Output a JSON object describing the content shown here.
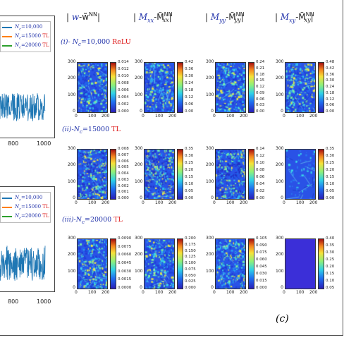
{
  "figure": {
    "panel_label": "(c)",
    "columns": [
      {
        "prefix": "| ",
        "sym": "w",
        "sep": "-",
        "approx": "w̃",
        "sup": "NN",
        "suffix": "|",
        "sym_color": "#2233aa"
      },
      {
        "prefix": "| ",
        "sym": "M",
        "sub": "xx",
        "sep": "-",
        "approx": "M̃",
        "sup": "NN",
        "approx_sub": "xx",
        "suffix": "|",
        "sym_color": "#2233aa"
      },
      {
        "prefix": "| ",
        "sym": "M",
        "sub": "yy",
        "sep": "-",
        "approx": "M̃",
        "sup": "NN",
        "approx_sub": "yy",
        "suffix": "|",
        "sym_color": "#2233aa"
      },
      {
        "prefix": "| ",
        "sym": "M",
        "sub": "xy",
        "sep": "-",
        "approx": "M̃",
        "sup": "NN",
        "approx_sub": "xy",
        "suffix": "|",
        "sym_color": "#2233aa"
      }
    ],
    "rows": [
      {
        "label_a": "(i)- ",
        "label_b": "N",
        "label_sub": "c",
        "label_c": "=10,000 ",
        "label_tag": "ReLU",
        "tag_color": "#d11"
      },
      {
        "label_a": "(ii)",
        "label_b": "-N",
        "label_sub": "c",
        "label_c": "=15000 ",
        "label_tag": "TL",
        "tag_color": "#d11"
      },
      {
        "label_a": "(iii)",
        "label_b": "-N",
        "label_sub": "c",
        "label_c": "=20000 ",
        "label_tag": "TL",
        "tag_color": "#d11"
      }
    ],
    "heatmap_axis": {
      "y_ticks": [
        "300",
        "200",
        "100",
        "0"
      ],
      "x_ticks": [
        "0",
        "100",
        "200"
      ]
    },
    "colorbars": [
      [
        [
          "0.014",
          "0.012",
          "0.010",
          "0.008",
          "0.006",
          "0.004",
          "0.002",
          "0.000"
        ],
        [
          "0.42",
          "0.36",
          "0.30",
          "0.24",
          "0.18",
          "0.12",
          "0.06",
          "0.00"
        ],
        [
          "0.24",
          "0.21",
          "0.18",
          "0.15",
          "0.12",
          "0.09",
          "0.06",
          "0.03",
          "0.00"
        ],
        [
          "0.48",
          "0.42",
          "0.36",
          "0.30",
          "0.24",
          "0.18",
          "0.12",
          "0.06",
          "0.00"
        ]
      ],
      [
        [
          "0.008",
          "0.007",
          "0.006",
          "0.005",
          "0.004",
          "0.003",
          "0.002",
          "0.001",
          "0.000"
        ],
        [
          "0.35",
          "0.30",
          "0.25",
          "0.20",
          "0.15",
          "0.10",
          "0.05",
          "0.00"
        ],
        [
          "0.14",
          "0.12",
          "0.10",
          "0.08",
          "0.06",
          "0.04",
          "0.02",
          "0.00"
        ],
        [
          "0.35",
          "0.30",
          "0.25",
          "0.20",
          "0.15",
          "0.10",
          "0.05",
          "0.00"
        ]
      ],
      [
        [
          "0.0090",
          "0.0075",
          "0.0060",
          "0.0045",
          "0.0030",
          "0.0015",
          "0.0000"
        ],
        [
          "0.200",
          "0.175",
          "0.150",
          "0.125",
          "0.100",
          "0.075",
          "0.050",
          "0.025",
          "0.000"
        ],
        [
          "0.105",
          "0.090",
          "0.075",
          "0.060",
          "0.045",
          "0.030",
          "0.015",
          "0.000"
        ],
        [
          "0.40",
          "0.35",
          "0.30",
          "0.25",
          "0.20",
          "0.15",
          "0.10",
          "0.05"
        ]
      ]
    ],
    "left_plots": [
      {
        "x_ticks": [
          "800",
          "1000"
        ],
        "legend": [
          {
            "N": "N",
            "sub": "c",
            "val": "=10,000",
            "tag": "",
            "color": "#1f77b4"
          },
          {
            "N": "N",
            "sub": "c",
            "val": "=15000 ",
            "tag": "TL",
            "color": "#ff7f0e"
          },
          {
            "N": "N",
            "sub": "c",
            "val": "=20000 ",
            "tag": "TL",
            "color": "#2ca02c"
          }
        ]
      },
      {
        "x_ticks": [
          "800",
          "1000"
        ],
        "legend": [
          {
            "N": "N",
            "sub": "c",
            "val": "=10,000",
            "tag": "",
            "color": "#1f77b4"
          },
          {
            "N": "N",
            "sub": "c",
            "val": "=15000 ",
            "tag": "TL",
            "color": "#ff7f0e"
          },
          {
            "N": "N",
            "sub": "c",
            "val": "=20000 ",
            "tag": "TL",
            "color": "#2ca02c"
          }
        ]
      }
    ],
    "colors": {
      "series_blue": "#1f77b4",
      "tag_red": "#d11",
      "label_blue": "#2233aa"
    }
  }
}
